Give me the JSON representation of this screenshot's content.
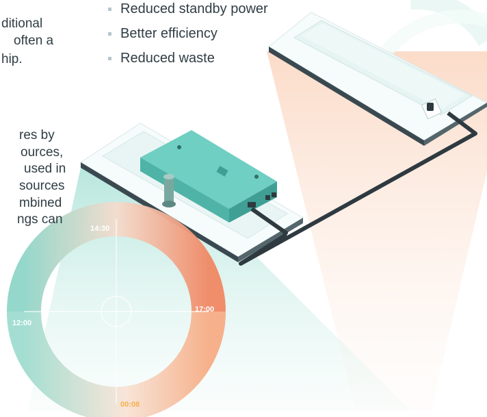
{
  "text_fragments": [
    "ditional",
    "often a",
    "hip.",
    "res by",
    "ources,",
    "used in",
    "sources",
    "mbined",
    "ngs can"
  ],
  "benefits": [
    "Reduced standby power",
    "Better efficiency",
    "Reduced waste"
  ],
  "ring": {
    "labels": [
      "14:30",
      "17:00",
      "12:00",
      "00:08"
    ],
    "colors": {
      "teal": "#8fd5c8",
      "orange": "#f08864",
      "peach": "#f7b58f"
    }
  },
  "colors": {
    "device": "#5fc4b8",
    "device_dark": "#3f9f94",
    "cable": "#2e3a40",
    "panel": "#eef6f6"
  },
  "icons": [
    "bullet-square-icon",
    "power-supply-device-icon",
    "led-panel-icon",
    "cable-icon"
  ]
}
